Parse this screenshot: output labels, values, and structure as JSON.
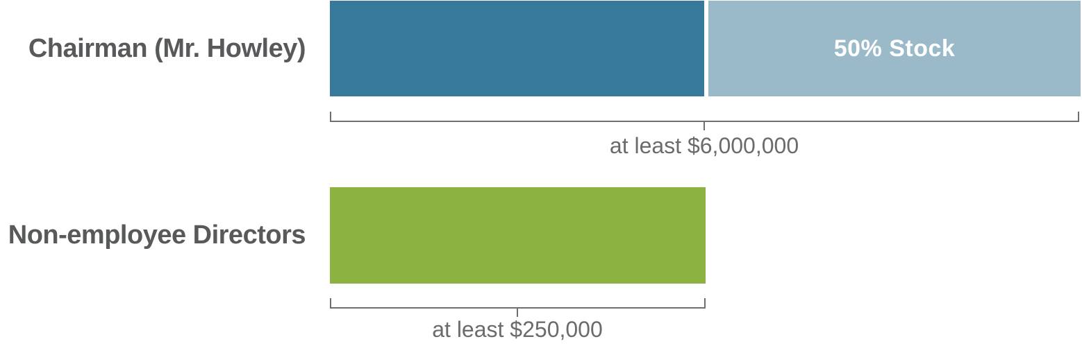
{
  "chart_data": {
    "type": "bar",
    "orientation": "horizontal",
    "categories": [
      "Chairman (Mr. Howley)",
      "Non-employee Directors"
    ],
    "values": [
      6000000,
      250000
    ],
    "value_labels": [
      "at least $6,000,000",
      "at least $250,000"
    ],
    "series": [
      {
        "category": "Chairman (Mr. Howley)",
        "segments": [
          {
            "label": "",
            "share": 0.5,
            "color": "#37799a"
          },
          {
            "label": "50% Stock",
            "share": 0.5,
            "color": "#9bbac9"
          }
        ]
      },
      {
        "category": "Non-employee Directors",
        "segments": [
          {
            "label": "",
            "share": 1.0,
            "color": "#8cb342"
          }
        ]
      }
    ],
    "legend": "none",
    "axes": "none",
    "grid": false
  },
  "rows": {
    "chairman": {
      "label": "Chairman (Mr. Howley)",
      "measure": "at least $6,000,000",
      "stock_label": "50% Stock"
    },
    "directors": {
      "label": "Non-employee Directors",
      "measure": "at least $250,000"
    }
  },
  "colors": {
    "dark_blue": "#37799a",
    "light_blue": "#9bbac9",
    "green": "#8cb342",
    "label_text": "#58595b",
    "measure_text": "#6a6b6d",
    "bracket": "#6d6e70",
    "bar_value_text": "#ffffff"
  }
}
